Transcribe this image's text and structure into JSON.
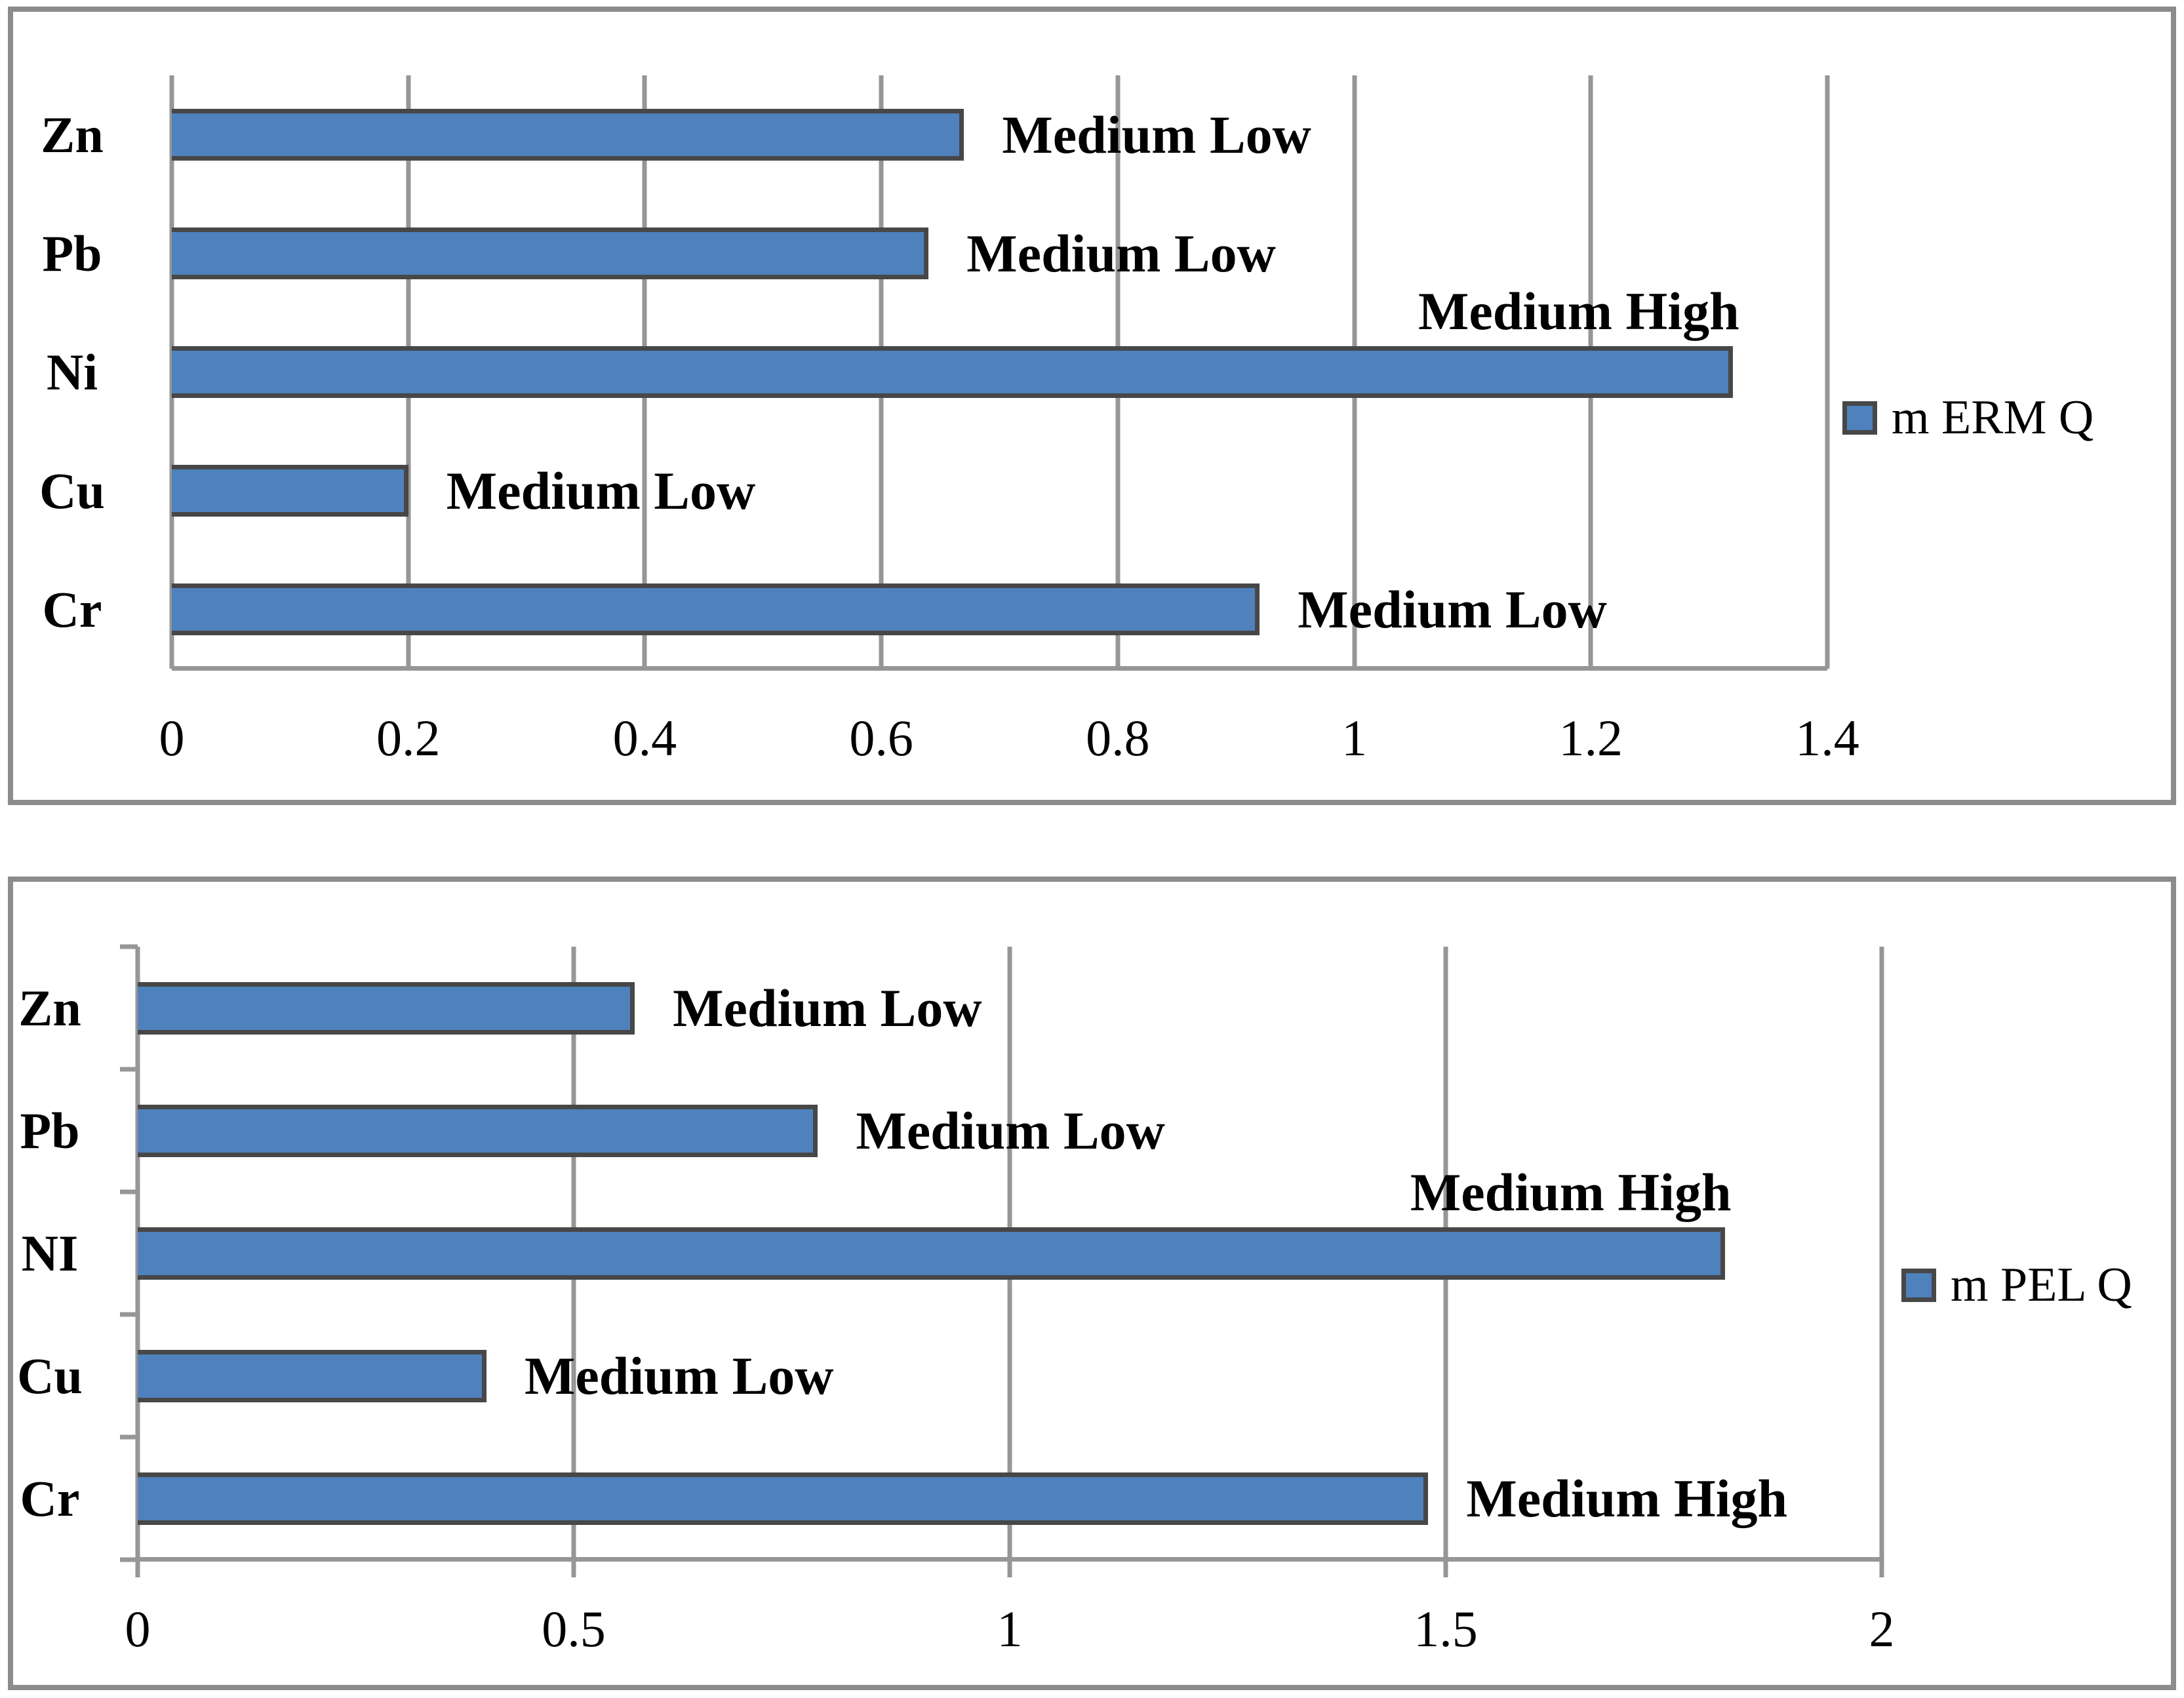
{
  "page": {
    "background": "#ffffff"
  },
  "colors": {
    "bar_fill": "#4F81BD",
    "bar_border": "#474747",
    "gridline": "#969696",
    "frame_border": "#8C8C8C",
    "text": "#000000"
  },
  "chart_data": [
    {
      "type": "bar",
      "orientation": "horizontal",
      "legend": "m ERM Q",
      "legend_position": "right",
      "grid": true,
      "categories": [
        "Zn",
        "Pb",
        "Ni",
        "Cu",
        "Cr"
      ],
      "values": [
        0.67,
        0.64,
        1.32,
        0.2,
        0.92
      ],
      "annotations": [
        {
          "category": "Zn",
          "text": "Medium Low",
          "placement": "right"
        },
        {
          "category": "Pb",
          "text": "Medium Low",
          "placement": "right"
        },
        {
          "category": "Ni",
          "text": "Medium High",
          "placement": "above"
        },
        {
          "category": "Cu",
          "text": "Medium Low",
          "placement": "right"
        },
        {
          "category": "Cr",
          "text": "Medium Low",
          "placement": "right"
        }
      ],
      "x_axis": {
        "min": 0,
        "max": 1.4,
        "tick_values": [
          0,
          0.2,
          0.4,
          0.6,
          0.8,
          1,
          1.2,
          1.4
        ],
        "tick_labels": [
          "0",
          "0.2",
          "0.4",
          "0.6",
          "0.8",
          "1",
          "1.2",
          "1.4"
        ]
      },
      "axis_tick_marks": false
    },
    {
      "type": "bar",
      "orientation": "horizontal",
      "legend": "m PEL Q",
      "legend_position": "right",
      "grid": true,
      "categories": [
        "Zn",
        "Pb",
        "NI",
        "Cu",
        "Cr"
      ],
      "values": [
        0.57,
        0.78,
        1.82,
        0.4,
        1.48
      ],
      "annotations": [
        {
          "category": "Zn",
          "text": "Medium Low",
          "placement": "right"
        },
        {
          "category": "Pb",
          "text": "Medium Low",
          "placement": "right"
        },
        {
          "category": "NI",
          "text": "Medium High",
          "placement": "above"
        },
        {
          "category": "Cu",
          "text": "Medium Low",
          "placement": "right"
        },
        {
          "category": "Cr",
          "text": "Medium High",
          "placement": "right"
        }
      ],
      "x_axis": {
        "min": 0,
        "max": 2,
        "tick_values": [
          0,
          0.5,
          1,
          1.5,
          2
        ],
        "tick_labels": [
          "0",
          "0.5",
          "1",
          "1.5",
          "2"
        ]
      },
      "axis_tick_marks": true
    }
  ]
}
